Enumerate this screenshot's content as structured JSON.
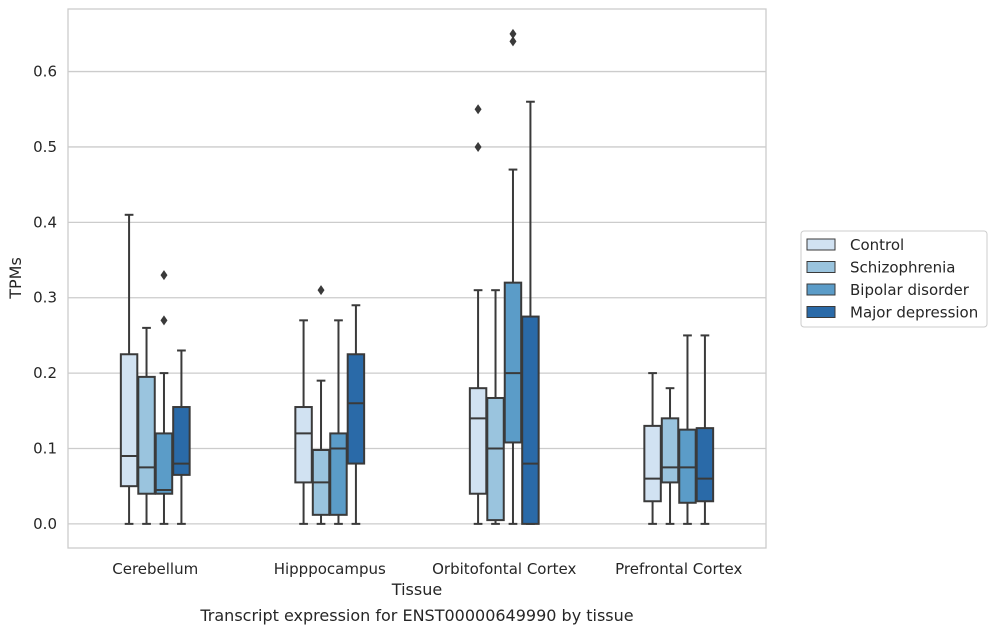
{
  "chart_data": {
    "type": "box",
    "xlabel": "Tissue",
    "ylabel": "TPMs",
    "caption": "Transcript expression for ENST00000649990 by tissue",
    "categories": [
      "Cerebellum",
      "Hipppocampus",
      "Orbitofontal Cortex",
      "Prefrontal Cortex"
    ],
    "ylim": [
      -0.032,
      0.683
    ],
    "yticks": [
      0.0,
      0.1,
      0.2,
      0.3,
      0.4,
      0.5,
      0.6
    ],
    "ytick_labels": [
      "0.0",
      "0.1",
      "0.2",
      "0.3",
      "0.4",
      "0.5",
      "0.6"
    ],
    "grid": "horizontal",
    "legend_position": "right",
    "series": [
      {
        "name": "Control",
        "color": "#d1e2f2",
        "boxes": [
          {
            "whisker_low": 0.0,
            "q1": 0.05,
            "median": 0.09,
            "q3": 0.225,
            "whisker_high": 0.41,
            "outliers": []
          },
          {
            "whisker_low": 0.0,
            "q1": 0.055,
            "median": 0.12,
            "q3": 0.155,
            "whisker_high": 0.27,
            "outliers": []
          },
          {
            "whisker_low": 0.0,
            "q1": 0.04,
            "median": 0.14,
            "q3": 0.18,
            "whisker_high": 0.31,
            "outliers": [
              0.5,
              0.55
            ]
          },
          {
            "whisker_low": 0.0,
            "q1": 0.03,
            "median": 0.06,
            "q3": 0.13,
            "whisker_high": 0.2,
            "outliers": []
          }
        ]
      },
      {
        "name": "Schizophrenia",
        "color": "#9ac4de",
        "boxes": [
          {
            "whisker_low": 0.0,
            "q1": 0.04,
            "median": 0.075,
            "q3": 0.195,
            "whisker_high": 0.26,
            "outliers": []
          },
          {
            "whisker_low": 0.0,
            "q1": 0.012,
            "median": 0.055,
            "q3": 0.098,
            "whisker_high": 0.19,
            "outliers": [
              0.31
            ]
          },
          {
            "whisker_low": 0.0,
            "q1": 0.005,
            "median": 0.1,
            "q3": 0.167,
            "whisker_high": 0.31,
            "outliers": []
          },
          {
            "whisker_low": 0.0,
            "q1": 0.055,
            "median": 0.075,
            "q3": 0.14,
            "whisker_high": 0.18,
            "outliers": []
          }
        ]
      },
      {
        "name": "Bipolar disorder",
        "color": "#5b9cc8",
        "boxes": [
          {
            "whisker_low": 0.0,
            "q1": 0.04,
            "median": 0.045,
            "q3": 0.12,
            "whisker_high": 0.2,
            "outliers": [
              0.27,
              0.33
            ]
          },
          {
            "whisker_low": 0.0,
            "q1": 0.012,
            "median": 0.1,
            "q3": 0.12,
            "whisker_high": 0.27,
            "outliers": []
          },
          {
            "whisker_low": 0.0,
            "q1": 0.108,
            "median": 0.2,
            "q3": 0.32,
            "whisker_high": 0.47,
            "outliers": [
              0.64,
              0.65
            ]
          },
          {
            "whisker_low": 0.0,
            "q1": 0.028,
            "median": 0.075,
            "q3": 0.125,
            "whisker_high": 0.25,
            "outliers": []
          }
        ]
      },
      {
        "name": "Major depression",
        "color": "#2a6aa8",
        "boxes": [
          {
            "whisker_low": 0.0,
            "q1": 0.065,
            "median": 0.08,
            "q3": 0.155,
            "whisker_high": 0.23,
            "outliers": []
          },
          {
            "whisker_low": 0.0,
            "q1": 0.08,
            "median": 0.16,
            "q3": 0.225,
            "whisker_high": 0.29,
            "outliers": []
          },
          {
            "whisker_low": 0.0,
            "q1": 0.0,
            "median": 0.08,
            "q3": 0.275,
            "whisker_high": 0.56,
            "outliers": []
          },
          {
            "whisker_low": 0.0,
            "q1": 0.03,
            "median": 0.06,
            "q3": 0.127,
            "whisker_high": 0.25,
            "outliers": []
          }
        ]
      }
    ]
  }
}
